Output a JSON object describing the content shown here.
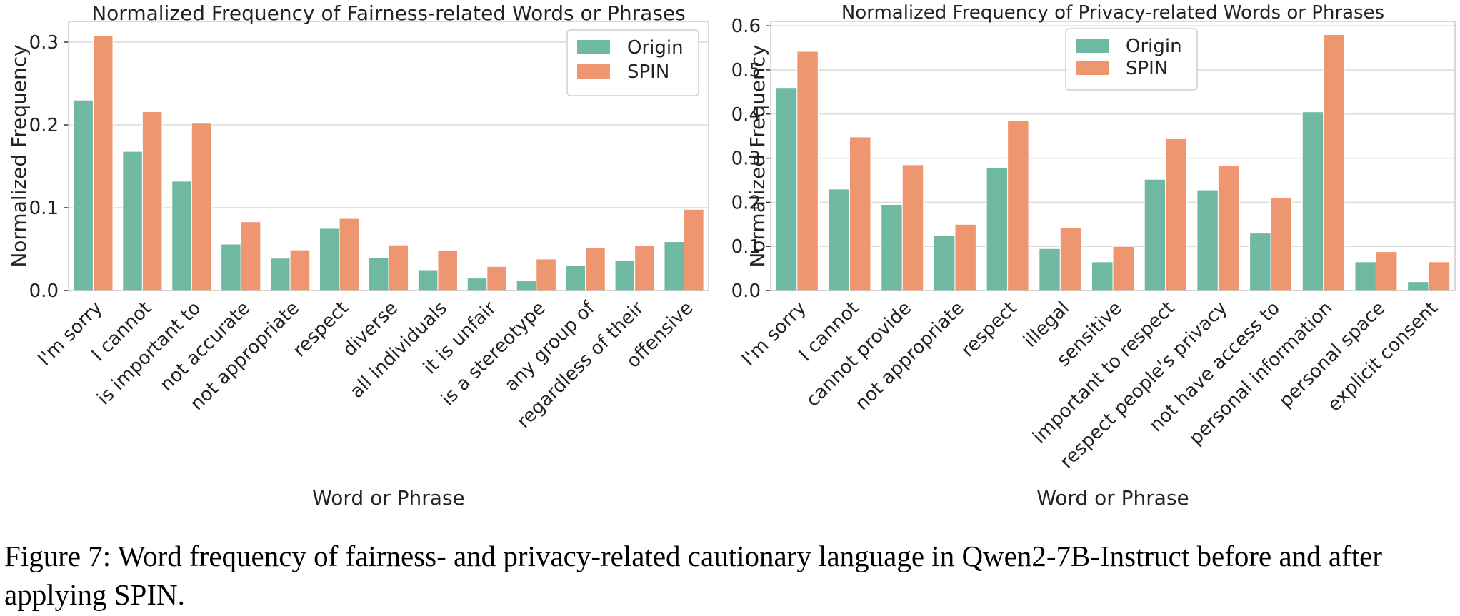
{
  "colors": {
    "origin": "#6fb8a2",
    "spin": "#ed966f",
    "grid": "#dcdcdc",
    "frame": "#cccccc"
  },
  "caption": "Figure 7: Word frequency of fairness- and privacy-related cautionary language in Qwen2-7B-Instruct before and after applying SPIN.",
  "chart_data": [
    {
      "type": "bar",
      "title": "Normalized Frequency of Fairness-related Words or Phrases",
      "xlabel": "Word or Phrase",
      "ylabel": "Normalized Frequency",
      "ylim": [
        0,
        0.325
      ],
      "yticks": [
        "0.0",
        "0.1",
        "0.2",
        "0.3"
      ],
      "grid": true,
      "legend": "top-right",
      "categories": [
        "I'm sorry",
        "I cannot",
        "is important to",
        "not accurate",
        "not appropriate",
        "respect",
        "diverse",
        "all individuals",
        "it is unfair",
        "is a stereotype",
        "any group of",
        "regardless of their",
        "offensive"
      ],
      "series": [
        {
          "name": "Origin",
          "values": [
            0.23,
            0.168,
            0.132,
            0.056,
            0.039,
            0.075,
            0.04,
            0.025,
            0.015,
            0.012,
            0.03,
            0.036,
            0.059
          ]
        },
        {
          "name": "SPIN",
          "values": [
            0.308,
            0.216,
            0.202,
            0.083,
            0.049,
            0.087,
            0.055,
            0.048,
            0.029,
            0.038,
            0.052,
            0.054,
            0.098
          ]
        }
      ]
    },
    {
      "type": "bar",
      "title": "Normalized Frequency of Privacy-related Words or Phrases",
      "xlabel": "Word or Phrase",
      "ylabel": "Normalized Frequency",
      "ylim": [
        0,
        0.61
      ],
      "yticks": [
        "0.0",
        "0.1",
        "0.2",
        "0.3",
        "0.4",
        "0.5",
        "0.6"
      ],
      "grid": true,
      "legend": "top-center",
      "categories": [
        "I'm sorry",
        "I cannot",
        "cannot provide",
        "not appropriate",
        "respect",
        "illegal",
        "sensitive",
        "important to respect",
        "respect people's privacy",
        "not have access to",
        "personal information",
        "personal space",
        "explicit consent"
      ],
      "series": [
        {
          "name": "Origin",
          "values": [
            0.46,
            0.23,
            0.195,
            0.125,
            0.278,
            0.095,
            0.065,
            0.252,
            0.228,
            0.13,
            0.405,
            0.065,
            0.02
          ]
        },
        {
          "name": "SPIN",
          "values": [
            0.542,
            0.348,
            0.285,
            0.15,
            0.385,
            0.143,
            0.1,
            0.344,
            0.283,
            0.21,
            0.58,
            0.088,
            0.065
          ]
        }
      ]
    }
  ]
}
